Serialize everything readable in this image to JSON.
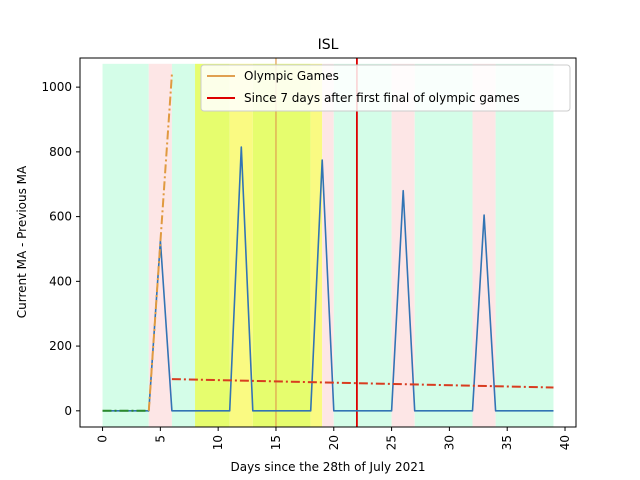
{
  "chart_data": {
    "type": "line",
    "title": "ISL",
    "xlabel": "Days since the 28th of July 2021",
    "ylabel": "Current MA - Previous MA",
    "xlim": [
      -1.95,
      40.95
    ],
    "ylim": [
      -50,
      1090
    ],
    "xticks": [
      0,
      5,
      10,
      15,
      20,
      25,
      30,
      35,
      40
    ],
    "yticks": [
      0,
      200,
      400,
      600,
      800,
      1000
    ],
    "grid": false,
    "legend_position": "top-right",
    "shaded_regions": [
      {
        "x0": 0,
        "x1": 4,
        "color": "#d4fde8"
      },
      {
        "x0": 4,
        "x1": 6,
        "color": "#fde6e6"
      },
      {
        "x0": 6,
        "x1": 8,
        "color": "#d4fde8"
      },
      {
        "x0": 8,
        "x1": 11,
        "color": "#e6fd6e"
      },
      {
        "x0": 11,
        "x1": 13,
        "color": "#fafa82"
      },
      {
        "x0": 13,
        "x1": 18,
        "color": "#e6fd6e"
      },
      {
        "x0": 18,
        "x1": 19,
        "color": "#fafa82"
      },
      {
        "x0": 19,
        "x1": 20,
        "color": "#fde6e6"
      },
      {
        "x0": 20,
        "x1": 25,
        "color": "#d4fde8"
      },
      {
        "x0": 25,
        "x1": 27,
        "color": "#fde6e6"
      },
      {
        "x0": 27,
        "x1": 32,
        "color": "#d4fde8"
      },
      {
        "x0": 32,
        "x1": 34,
        "color": "#fde6e6"
      },
      {
        "x0": 34,
        "x1": 39,
        "color": "#d4fde8"
      }
    ],
    "vertical_lines": [
      {
        "name": "Olympic Games",
        "x": 15,
        "color": "#e0a050"
      },
      {
        "name": "Since 7 days after first final of olympic games",
        "x": 22,
        "color": "#dd0000"
      }
    ],
    "series": [
      {
        "color": "#3274b4",
        "style": "solid",
        "x": [
          0,
          1,
          2,
          3,
          4,
          5,
          6,
          7,
          8,
          9,
          10,
          11,
          12,
          13,
          14,
          15,
          16,
          17,
          18,
          19,
          20,
          21,
          22,
          23,
          24,
          25,
          26,
          27,
          28,
          29,
          30,
          31,
          32,
          33,
          34,
          35,
          36,
          37,
          38,
          39
        ],
        "y": [
          0,
          0,
          0,
          0,
          0,
          525,
          0,
          0,
          0,
          0,
          0,
          0,
          815,
          0,
          0,
          0,
          0,
          0,
          0,
          775,
          0,
          0,
          0,
          0,
          0,
          0,
          680,
          0,
          0,
          0,
          0,
          0,
          0,
          605,
          0,
          0,
          0,
          0,
          0,
          0
        ]
      },
      {
        "color": "#2a8a2a",
        "style": "dashdot",
        "x": [
          0,
          4
        ],
        "y": [
          0,
          0
        ]
      },
      {
        "color": "#e09a40",
        "style": "dashdot",
        "x": [
          4,
          6
        ],
        "y": [
          0,
          1040
        ]
      },
      {
        "color": "#d83c20",
        "style": "dashdot",
        "x": [
          6,
          39
        ],
        "y": [
          98,
          72
        ]
      }
    ]
  }
}
